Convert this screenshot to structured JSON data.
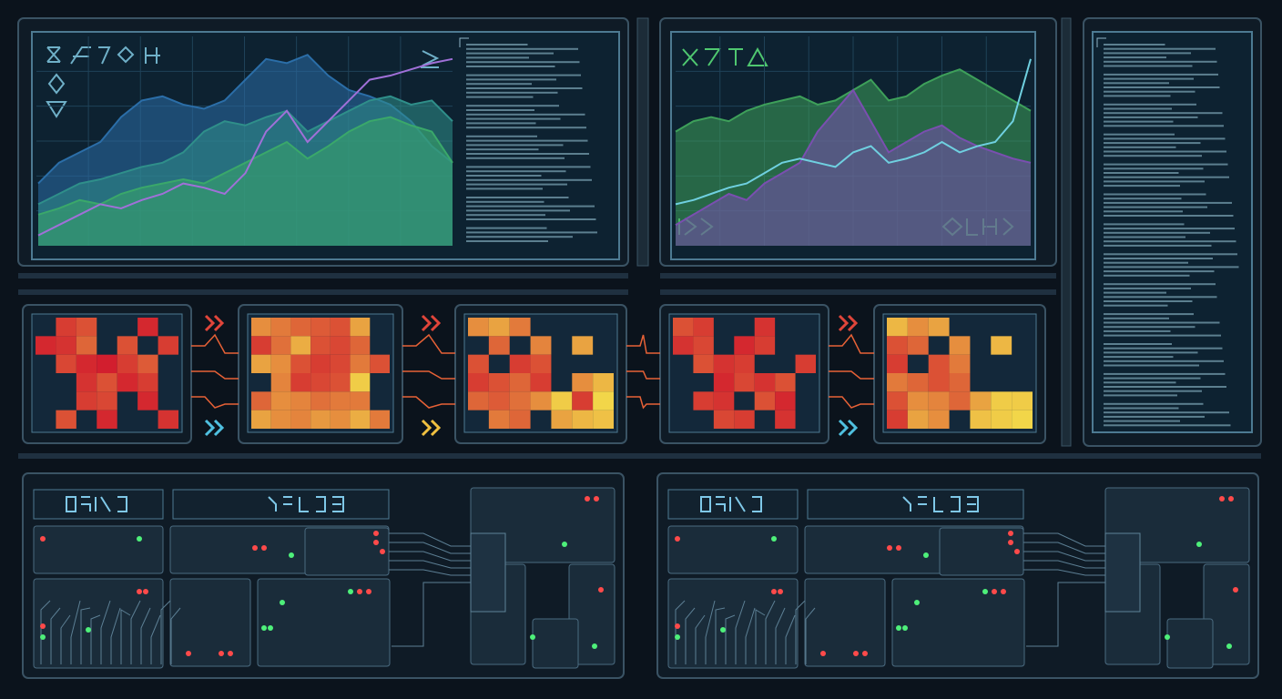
{
  "chart_data": [
    {
      "type": "area",
      "series": [
        {
          "color": "#2b6ea8",
          "area": true,
          "values": [
            30,
            40,
            45,
            50,
            62,
            70,
            72,
            68,
            66,
            70,
            80,
            90,
            88,
            92,
            82,
            75,
            72,
            68,
            60,
            48,
            40
          ]
        },
        {
          "color": "#2f8f8a",
          "area": true,
          "values": [
            20,
            25,
            30,
            32,
            35,
            38,
            40,
            45,
            55,
            60,
            58,
            62,
            65,
            55,
            60,
            65,
            70,
            72,
            68,
            70,
            60
          ]
        },
        {
          "color": "#3aa86a",
          "area": true,
          "values": [
            15,
            18,
            22,
            20,
            25,
            28,
            30,
            32,
            30,
            35,
            40,
            45,
            50,
            42,
            48,
            55,
            60,
            62,
            58,
            55,
            40
          ]
        },
        {
          "color": "#a070d8",
          "area": false,
          "values": [
            5,
            10,
            15,
            20,
            18,
            22,
            25,
            30,
            28,
            25,
            35,
            55,
            65,
            50,
            60,
            70,
            80,
            82,
            85,
            88,
            90
          ]
        }
      ],
      "ylim": [
        0,
        100
      ]
    },
    {
      "type": "area",
      "series": [
        {
          "color": "#3ea05a",
          "area": true,
          "values": [
            55,
            60,
            62,
            60,
            65,
            68,
            70,
            72,
            68,
            70,
            75,
            80,
            70,
            72,
            78,
            82,
            85,
            80,
            75,
            70,
            65
          ]
        },
        {
          "color": "#7a4fb0",
          "area": true,
          "values": [
            10,
            15,
            20,
            25,
            22,
            30,
            35,
            40,
            55,
            65,
            75,
            60,
            45,
            50,
            55,
            58,
            52,
            48,
            45,
            42,
            40
          ]
        },
        {
          "color": "#6fd0e0",
          "area": false,
          "values": [
            20,
            22,
            25,
            28,
            30,
            35,
            40,
            42,
            40,
            38,
            45,
            48,
            40,
            42,
            45,
            50,
            45,
            48,
            50,
            60,
            90
          ]
        }
      ],
      "ylim": [
        0,
        100
      ]
    },
    {
      "type": "heatmap",
      "colors": [
        "#d0142c",
        "#f4e04a"
      ],
      "vlim": [
        0,
        100
      ],
      "values": [
        [
          null,
          20,
          30,
          null,
          null,
          10,
          null
        ],
        [
          10,
          15,
          40,
          null,
          30,
          null,
          20
        ],
        [
          null,
          25,
          10,
          5,
          20,
          35,
          null
        ],
        [
          null,
          null,
          15,
          30,
          10,
          20,
          null
        ],
        [
          null,
          null,
          20,
          25,
          null,
          10,
          null
        ],
        [
          null,
          30,
          null,
          10,
          null,
          null,
          15
        ]
      ]
    },
    {
      "type": "heatmap",
      "colors": [
        "#d0142c",
        "#f4e04a"
      ],
      "vlim": [
        0,
        100
      ],
      "values": [
        [
          60,
          50,
          40,
          35,
          30,
          70,
          null
        ],
        [
          20,
          45,
          75,
          30,
          25,
          40,
          null
        ],
        [
          70,
          60,
          30,
          20,
          25,
          50,
          30
        ],
        [
          null,
          55,
          20,
          25,
          30,
          90,
          null
        ],
        [
          40,
          60,
          55,
          45,
          50,
          50,
          null
        ],
        [
          70,
          60,
          55,
          65,
          60,
          75,
          50
        ]
      ]
    },
    {
      "type": "heatmap",
      "colors": [
        "#d0142c",
        "#f4e04a"
      ],
      "vlim": [
        0,
        100
      ],
      "values": [
        [
          60,
          70,
          50,
          null,
          null,
          null,
          null
        ],
        [
          null,
          40,
          null,
          55,
          null,
          70,
          null
        ],
        [
          30,
          null,
          20,
          30,
          null,
          null,
          null
        ],
        [
          20,
          30,
          40,
          20,
          null,
          60,
          80
        ],
        [
          40,
          35,
          45,
          60,
          90,
          20,
          95
        ],
        [
          null,
          50,
          40,
          null,
          70,
          80,
          85
        ]
      ]
    },
    {
      "type": "heatmap",
      "colors": [
        "#d0142c",
        "#f4e04a"
      ],
      "vlim": [
        0,
        100
      ],
      "values": [
        [
          30,
          20,
          null,
          null,
          15,
          null,
          null
        ],
        [
          15,
          25,
          null,
          10,
          20,
          null,
          null
        ],
        [
          null,
          30,
          15,
          20,
          null,
          null,
          20
        ],
        [
          null,
          null,
          10,
          25,
          15,
          30,
          null
        ],
        [
          null,
          20,
          15,
          null,
          30,
          10,
          null
        ],
        [
          null,
          null,
          25,
          20,
          null,
          15,
          null
        ]
      ]
    },
    {
      "type": "heatmap",
      "colors": [
        "#d0142c",
        "#f4e04a"
      ],
      "vlim": [
        0,
        100
      ],
      "values": [
        [
          80,
          60,
          70,
          null,
          null,
          null,
          null
        ],
        [
          30,
          40,
          null,
          60,
          null,
          80,
          null
        ],
        [
          20,
          null,
          30,
          50,
          null,
          null,
          null
        ],
        [
          50,
          40,
          30,
          40,
          null,
          null,
          null
        ],
        [
          30,
          60,
          55,
          40,
          70,
          90,
          90
        ],
        [
          20,
          70,
          60,
          null,
          85,
          90,
          95
        ]
      ]
    }
  ]
}
